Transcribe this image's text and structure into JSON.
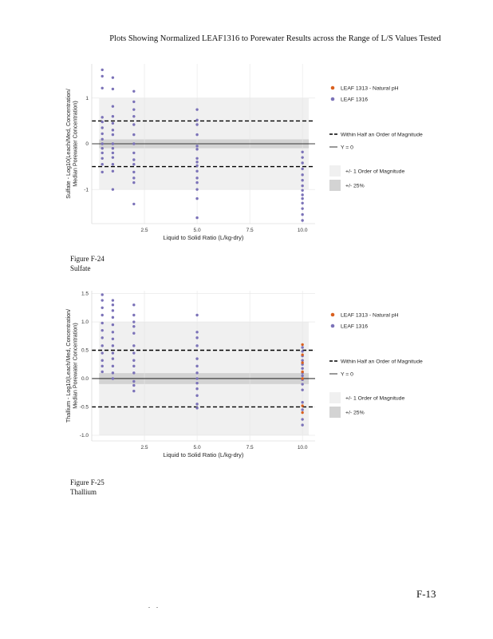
{
  "page": {
    "header": "Plots Showing Normalized LEAF1316 to Porewater Results across the Range of L/S Values Tested",
    "page_number": "F-13",
    "footer_mark": ". ."
  },
  "figures": [
    {
      "caption_label": "Figure F-24",
      "caption_name": "Sulfate"
    },
    {
      "caption_label": "Figure F-25",
      "caption_name": "Thallium"
    }
  ],
  "colors": {
    "panel_bg": "#ffffff",
    "half_band": "#f0f0f0",
    "quarter_band": "#d3d3d3",
    "leaf1316": "#7b72b8",
    "leaf1313": "#d9601f",
    "grid": "#e6e6e6"
  },
  "chart_data": [
    {
      "type": "scatter",
      "title": "",
      "xlabel": "Liquid to Solid Ratio (L/kg-dry)",
      "ylabel": "Sulfate - Log10(Leach/Median Porewater Concentration)",
      "ylabel_lines": [
        "Sulfate - Log10(Leach/Med, Concentration/",
        "Median Porewater Concentration)"
      ],
      "xlim": [
        0,
        10.6
      ],
      "ylim": [
        -1.75,
        1.75
      ],
      "xticks": [
        2.5,
        5.0,
        7.5,
        10.0
      ],
      "xtick_labels": [
        "2.5",
        "5.0",
        "7.5",
        "10.0"
      ],
      "yticks": [
        -1,
        0,
        1
      ],
      "ytick_labels": [
        "-1",
        "0",
        "1"
      ],
      "half_order_band": [
        -1,
        1
      ],
      "quarter_band": [
        -0.097,
        0.097
      ],
      "dashed_lines": [
        0.5,
        -0.5
      ],
      "solid_line": 0,
      "legend": {
        "series": [
          "LEAF 1313 - Natural pH",
          "LEAF 1316"
        ],
        "lines": [
          "Within Half an Order of Magnitude",
          "Y = 0"
        ],
        "bands": [
          "+/- 1 Order of Magnitude",
          "+/- 25%"
        ]
      },
      "series": [
        {
          "name": "LEAF 1316",
          "color": "#7b72b8",
          "points": [
            [
              0.5,
              1.62
            ],
            [
              0.5,
              1.48
            ],
            [
              0.5,
              1.22
            ],
            [
              0.5,
              0.58
            ],
            [
              0.5,
              0.48
            ],
            [
              0.5,
              0.35
            ],
            [
              0.5,
              0.22
            ],
            [
              0.5,
              0.1
            ],
            [
              0.5,
              0.0
            ],
            [
              0.5,
              -0.1
            ],
            [
              0.5,
              -0.2
            ],
            [
              0.5,
              -0.32
            ],
            [
              0.5,
              -0.45
            ],
            [
              0.5,
              -0.62
            ],
            [
              1.0,
              1.45
            ],
            [
              1.0,
              1.2
            ],
            [
              1.0,
              0.82
            ],
            [
              1.0,
              0.6
            ],
            [
              1.0,
              0.45
            ],
            [
              1.0,
              0.3
            ],
            [
              1.0,
              0.2
            ],
            [
              1.0,
              0.0
            ],
            [
              1.0,
              -0.1
            ],
            [
              1.0,
              -0.2
            ],
            [
              1.0,
              -0.3
            ],
            [
              1.0,
              -0.45
            ],
            [
              1.0,
              -0.6
            ],
            [
              1.0,
              -1.0
            ],
            [
              2.0,
              1.15
            ],
            [
              2.0,
              0.92
            ],
            [
              2.0,
              0.75
            ],
            [
              2.0,
              0.6
            ],
            [
              2.0,
              0.42
            ],
            [
              2.0,
              0.2
            ],
            [
              2.0,
              0.0
            ],
            [
              2.0,
              -0.2
            ],
            [
              2.0,
              -0.35
            ],
            [
              2.0,
              -0.45
            ],
            [
              2.0,
              -0.62
            ],
            [
              2.0,
              -0.75
            ],
            [
              2.0,
              -0.85
            ],
            [
              2.0,
              -1.32
            ],
            [
              5.0,
              0.75
            ],
            [
              5.0,
              0.52
            ],
            [
              5.0,
              0.42
            ],
            [
              5.0,
              0.2
            ],
            [
              5.0,
              -0.05
            ],
            [
              5.0,
              -0.12
            ],
            [
              5.0,
              -0.32
            ],
            [
              5.0,
              -0.4
            ],
            [
              5.0,
              -0.48
            ],
            [
              5.0,
              -0.6
            ],
            [
              5.0,
              -0.75
            ],
            [
              5.0,
              -0.85
            ],
            [
              5.0,
              -1.0
            ],
            [
              5.0,
              -1.2
            ],
            [
              5.0,
              -1.62
            ],
            [
              10.0,
              -0.18
            ],
            [
              10.0,
              -0.3
            ],
            [
              10.0,
              -0.42
            ],
            [
              10.0,
              -0.55
            ],
            [
              10.0,
              -0.68
            ],
            [
              10.0,
              -0.8
            ],
            [
              10.0,
              -0.92
            ],
            [
              10.0,
              -1.02
            ],
            [
              10.0,
              -1.12
            ],
            [
              10.0,
              -1.2
            ],
            [
              10.0,
              -1.3
            ],
            [
              10.0,
              -1.42
            ],
            [
              10.0,
              -1.55
            ],
            [
              10.0,
              -1.68
            ]
          ]
        },
        {
          "name": "LEAF 1313 - Natural pH",
          "color": "#d9601f",
          "points": []
        }
      ]
    },
    {
      "type": "scatter",
      "title": "",
      "xlabel": "Liquid to Solid Ratio (L/kg-dry)",
      "ylabel": "Thallium - Log10(Leach/Median Porewater Concentration)",
      "ylabel_lines": [
        "Thallium - Log10(Leach/Med, Concentration/",
        "Median Porewater Concentration)"
      ],
      "xlim": [
        0,
        10.6
      ],
      "ylim": [
        -1.1,
        1.55
      ],
      "xticks": [
        2.5,
        5.0,
        7.5,
        10.0
      ],
      "xtick_labels": [
        "2.5",
        "5.0",
        "7.5",
        "10.0"
      ],
      "yticks": [
        1.5,
        1.0,
        0.5,
        0.0,
        -0.5,
        -1.0
      ],
      "ytick_labels": [
        "1.5",
        "1.0",
        "0.5",
        "0.0",
        "-0.5",
        "-1.0"
      ],
      "half_order_band": [
        -1,
        1
      ],
      "quarter_band": [
        -0.097,
        0.097
      ],
      "dashed_lines": [
        0.5,
        -0.5
      ],
      "solid_line": 0,
      "legend": {
        "series": [
          "LEAF 1313 - Natural pH",
          "LEAF 1316"
        ],
        "lines": [
          "Within Half an Order of Magnitude",
          "Y = 0"
        ],
        "bands": [
          "+/- 1 Order of Magnitude",
          "+/- 25%"
        ]
      },
      "series": [
        {
          "name": "LEAF 1316",
          "color": "#7b72b8",
          "points": [
            [
              0.5,
              1.48
            ],
            [
              0.5,
              1.38
            ],
            [
              0.5,
              1.25
            ],
            [
              0.5,
              1.12
            ],
            [
              0.5,
              0.98
            ],
            [
              0.5,
              0.85
            ],
            [
              0.5,
              0.72
            ],
            [
              0.5,
              0.58
            ],
            [
              0.5,
              0.45
            ],
            [
              0.5,
              0.32
            ],
            [
              0.5,
              0.22
            ],
            [
              0.5,
              0.12
            ],
            [
              1.0,
              1.38
            ],
            [
              1.0,
              1.3
            ],
            [
              1.0,
              1.2
            ],
            [
              1.0,
              1.08
            ],
            [
              1.0,
              0.95
            ],
            [
              1.0,
              0.82
            ],
            [
              1.0,
              0.7
            ],
            [
              1.0,
              0.58
            ],
            [
              1.0,
              0.45
            ],
            [
              1.0,
              0.35
            ],
            [
              1.0,
              0.22
            ],
            [
              1.0,
              0.1
            ],
            [
              1.0,
              0.0
            ],
            [
              2.0,
              1.3
            ],
            [
              2.0,
              1.12
            ],
            [
              2.0,
              1.0
            ],
            [
              2.0,
              0.92
            ],
            [
              2.0,
              0.8
            ],
            [
              2.0,
              0.58
            ],
            [
              2.0,
              0.45
            ],
            [
              2.0,
              0.32
            ],
            [
              2.0,
              0.22
            ],
            [
              2.0,
              0.1
            ],
            [
              2.0,
              -0.05
            ],
            [
              2.0,
              -0.12
            ],
            [
              2.0,
              -0.22
            ],
            [
              5.0,
              1.12
            ],
            [
              5.0,
              0.82
            ],
            [
              5.0,
              0.72
            ],
            [
              5.0,
              0.58
            ],
            [
              5.0,
              0.35
            ],
            [
              5.0,
              0.22
            ],
            [
              5.0,
              0.1
            ],
            [
              5.0,
              0.0
            ],
            [
              5.0,
              -0.08
            ],
            [
              5.0,
              -0.18
            ],
            [
              5.0,
              -0.3
            ],
            [
              5.0,
              -0.45
            ],
            [
              5.0,
              -0.52
            ],
            [
              10.0,
              0.55
            ],
            [
              10.0,
              0.48
            ],
            [
              10.0,
              0.4
            ],
            [
              10.0,
              0.32
            ],
            [
              10.0,
              0.25
            ],
            [
              10.0,
              0.18
            ],
            [
              10.0,
              0.1
            ],
            [
              10.0,
              0.05
            ],
            [
              10.0,
              -0.02
            ],
            [
              10.0,
              -0.1
            ],
            [
              10.0,
              -0.2
            ],
            [
              10.0,
              -0.42
            ],
            [
              10.0,
              -0.55
            ],
            [
              10.0,
              -0.72
            ],
            [
              10.0,
              -0.82
            ]
          ]
        },
        {
          "name": "LEAF 1313 - Natural pH",
          "color": "#d9601f",
          "points": [
            [
              10.0,
              0.6
            ],
            [
              10.0,
              0.42
            ],
            [
              10.0,
              0.28
            ],
            [
              10.0,
              0.12
            ],
            [
              10.0,
              0.0
            ],
            [
              10.0,
              -0.48
            ],
            [
              10.0,
              -0.6
            ]
          ]
        }
      ]
    }
  ]
}
